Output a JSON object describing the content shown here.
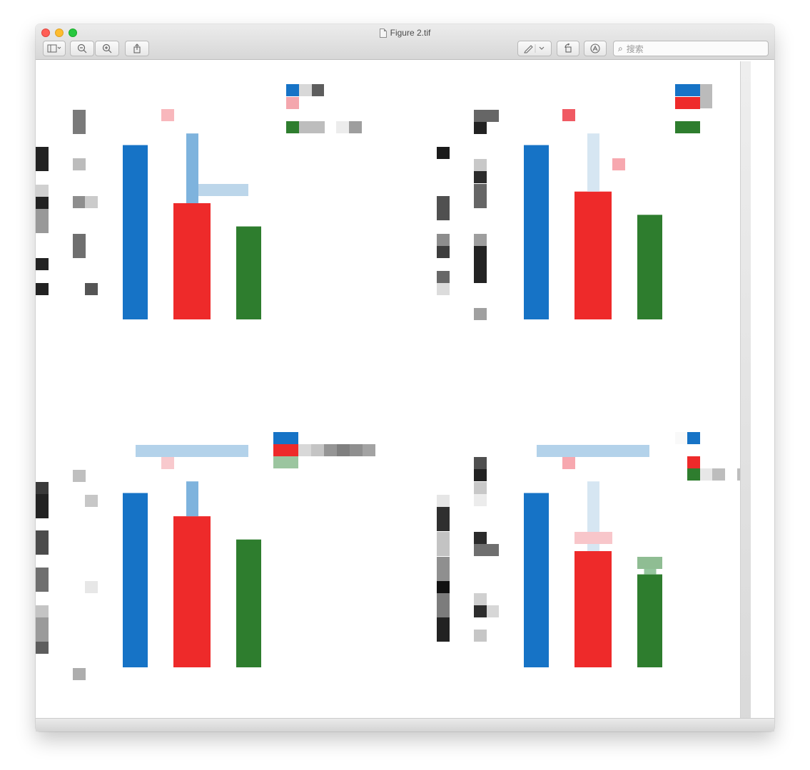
{
  "window": {
    "title": "Figure 2.tif"
  },
  "toolbar": {
    "sidebar_icon": "sidebar-icon",
    "zoom_out_icon": "zoom-out-icon",
    "zoom_in_icon": "zoom-in-icon",
    "share_icon": "share-icon",
    "markup_icon": "pen-icon",
    "rotate_icon": "rotate-icon",
    "annotate_icon": "annotate-icon",
    "search_placeholder": "搜索"
  },
  "chart_data": [
    {
      "type": "bar",
      "title": "",
      "xlabel": "",
      "ylabel": "",
      "series": [
        {
          "values": [
            0.75,
            0.5,
            0.4
          ]
        }
      ],
      "error_bars": {
        "upper": [
          0,
          0.3,
          0
        ],
        "lower": [
          0,
          0,
          0
        ]
      },
      "colors": [
        "#1673c6",
        "#ee2a2a",
        "#2e7d2e"
      ],
      "ylim": [
        0,
        1
      ]
    },
    {
      "type": "bar",
      "title": "",
      "xlabel": "",
      "ylabel": "",
      "series": [
        {
          "values": [
            0.75,
            0.55,
            0.45
          ]
        }
      ],
      "error_bars": {
        "upper": [
          0,
          0.25,
          0
        ],
        "lower": [
          0,
          0,
          0
        ]
      },
      "colors": [
        "#1673c6",
        "#ee2a2a",
        "#2e7d2e"
      ],
      "ylim": [
        0,
        1
      ]
    },
    {
      "type": "bar",
      "title": "",
      "xlabel": "",
      "ylabel": "",
      "series": [
        {
          "values": [
            0.75,
            0.65,
            0.55
          ]
        }
      ],
      "error_bars": {
        "upper": [
          0,
          0.15,
          0
        ],
        "lower": [
          0,
          0,
          0
        ]
      },
      "colors": [
        "#1673c6",
        "#ee2a2a",
        "#2e7d2e"
      ],
      "ylim": [
        0,
        1
      ]
    },
    {
      "type": "bar",
      "title": "",
      "xlabel": "",
      "ylabel": "",
      "series": [
        {
          "values": [
            0.75,
            0.5,
            0.4
          ]
        }
      ],
      "error_bars": {
        "upper": [
          0,
          0.3,
          0.05
        ],
        "lower": [
          0,
          0,
          0
        ]
      },
      "colors": [
        "#1673c6",
        "#ee2a2a",
        "#2e7d2e"
      ],
      "ylim": [
        0,
        1
      ]
    }
  ]
}
